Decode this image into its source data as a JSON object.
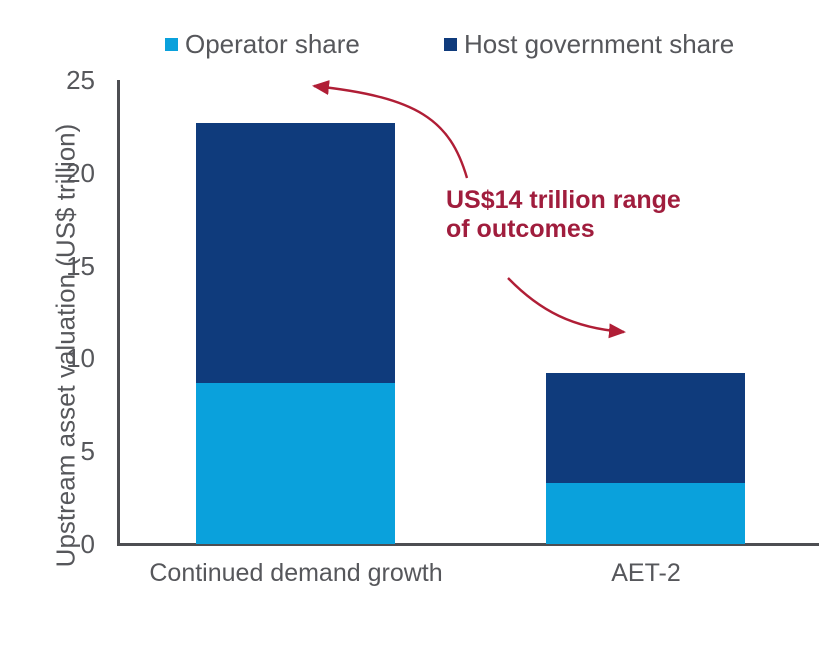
{
  "legend": {
    "items": [
      {
        "label": "Operator share",
        "color": "#0AA1DC"
      },
      {
        "label": "Host government share",
        "color": "#0F3B7C"
      }
    ]
  },
  "annotation": {
    "text": "US$14 trillion range\nof outcomes",
    "color": "#A01D3D",
    "arrow_color": "#B01E36"
  },
  "colors": {
    "axis": "#4D4E52",
    "text": "#56575B",
    "background": "#FFFFFF"
  },
  "chart_data": {
    "type": "bar",
    "stacked": true,
    "title": "",
    "categories": [
      "Continued demand growth",
      "AET-2"
    ],
    "series": [
      {
        "name": "Operator share",
        "values": [
          8.7,
          3.3
        ],
        "color": "#0AA1DC"
      },
      {
        "name": "Host government share",
        "values": [
          14.0,
          5.9
        ],
        "color": "#0F3B7C"
      }
    ],
    "totals": [
      22.7,
      9.2
    ],
    "xlabel": "",
    "ylabel": "Upstream asset valuation (US$ trillion)",
    "yticks": [
      0,
      5,
      10,
      15,
      20,
      25
    ],
    "ylim": [
      0,
      25
    ],
    "grid": false,
    "legend_position": "top",
    "annotation_text": "US$14 trillion range of outcomes"
  }
}
